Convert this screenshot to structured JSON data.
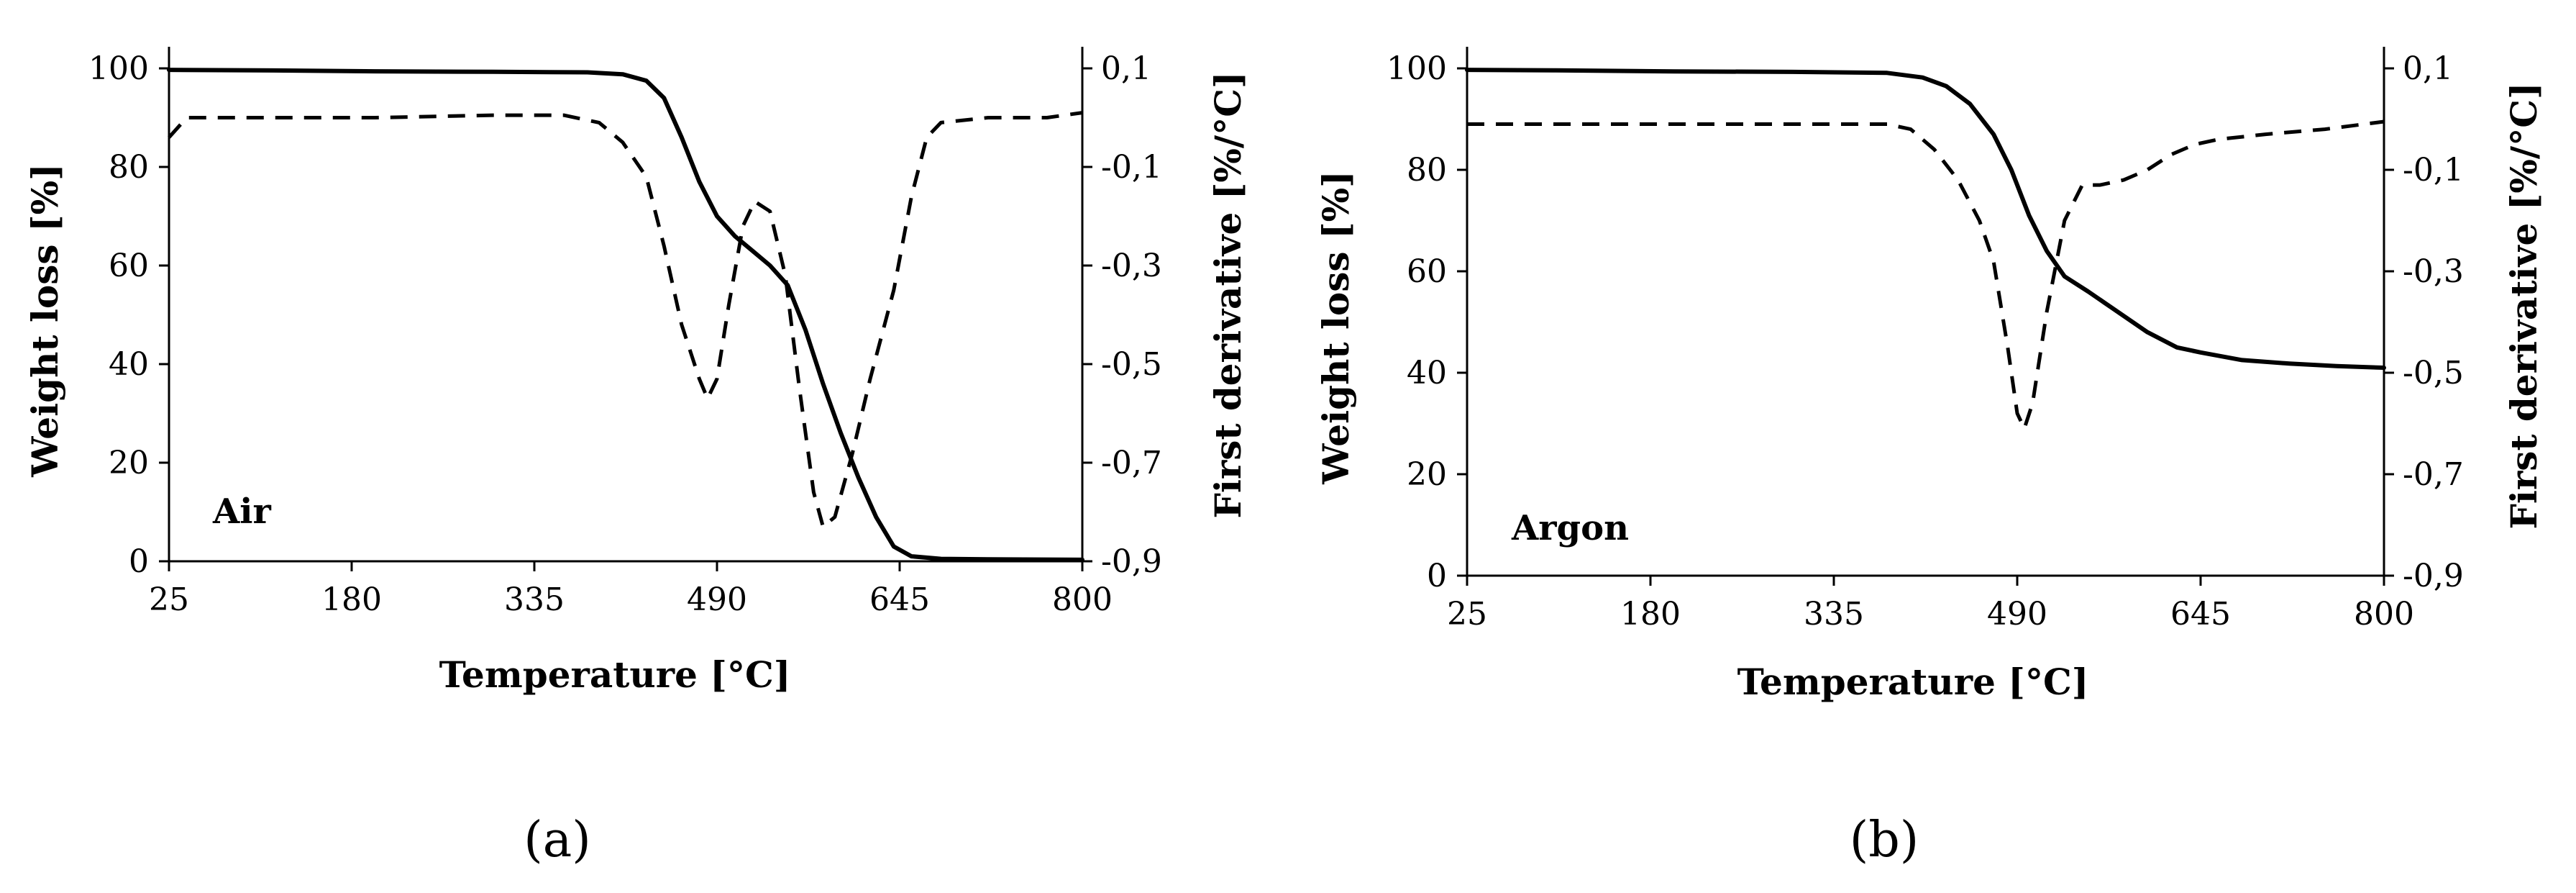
{
  "chart_data": [
    {
      "type": "line",
      "panel_label": "(a)",
      "annotation": "Air",
      "xlabel": "Temperature [°C]",
      "ylabel": "Weight loss [%]",
      "y2label": "First derivative  [%/°C]",
      "xlim": [
        25,
        800
      ],
      "ylim": [
        0,
        100
      ],
      "y2lim": [
        -0.9,
        0.1
      ],
      "x_ticks": [
        "25",
        "180",
        "335",
        "490",
        "645",
        "800"
      ],
      "y_ticks": [
        "0",
        "20",
        "40",
        "60",
        "80",
        "100"
      ],
      "y2_ticks": [
        "-0,9",
        "-0,7",
        "-0,5",
        "-0,3",
        "-0,1",
        "0,1"
      ],
      "grid": false,
      "series": [
        {
          "axis": "left",
          "style": "solid",
          "points": [
            [
              25,
              99.7
            ],
            [
              100,
              99.6
            ],
            [
              200,
              99.4
            ],
            [
              300,
              99.3
            ],
            [
              380,
              99.2
            ],
            [
              410,
              98.8
            ],
            [
              430,
              97.5
            ],
            [
              445,
              94
            ],
            [
              460,
              86
            ],
            [
              475,
              77
            ],
            [
              490,
              70
            ],
            [
              505,
              66
            ],
            [
              520,
              63
            ],
            [
              535,
              60
            ],
            [
              550,
              56
            ],
            [
              565,
              47
            ],
            [
              580,
              36
            ],
            [
              595,
              26
            ],
            [
              610,
              17
            ],
            [
              625,
              9
            ],
            [
              640,
              3
            ],
            [
              655,
              1
            ],
            [
              680,
              0.5
            ],
            [
              720,
              0.4
            ],
            [
              800,
              0.3
            ]
          ]
        },
        {
          "axis": "right",
          "style": "dashed",
          "points": [
            [
              25,
              -0.04
            ],
            [
              40,
              0.0
            ],
            [
              100,
              0.0
            ],
            [
              200,
              0.0
            ],
            [
              300,
              0.005
            ],
            [
              360,
              0.005
            ],
            [
              390,
              -0.01
            ],
            [
              410,
              -0.05
            ],
            [
              430,
              -0.12
            ],
            [
              445,
              -0.26
            ],
            [
              460,
              -0.42
            ],
            [
              475,
              -0.53
            ],
            [
              482,
              -0.57
            ],
            [
              490,
              -0.53
            ],
            [
              500,
              -0.38
            ],
            [
              512,
              -0.22
            ],
            [
              522,
              -0.17
            ],
            [
              535,
              -0.19
            ],
            [
              548,
              -0.32
            ],
            [
              560,
              -0.55
            ],
            [
              572,
              -0.76
            ],
            [
              580,
              -0.83
            ],
            [
              590,
              -0.81
            ],
            [
              605,
              -0.68
            ],
            [
              620,
              -0.53
            ],
            [
              640,
              -0.35
            ],
            [
              655,
              -0.16
            ],
            [
              668,
              -0.04
            ],
            [
              680,
              -0.01
            ],
            [
              720,
              0.0
            ],
            [
              770,
              0.0
            ],
            [
              800,
              0.01
            ]
          ]
        }
      ]
    },
    {
      "type": "line",
      "panel_label": "(b)",
      "annotation": "Argon",
      "xlabel": "Temperature [°C]",
      "ylabel": "Weight loss [%]",
      "y2label": "First derivative  [%/°C]",
      "xlim": [
        25,
        800
      ],
      "ylim": [
        0,
        100
      ],
      "y2lim": [
        -0.9,
        0.1
      ],
      "x_ticks": [
        "25",
        "180",
        "335",
        "490",
        "645",
        "800"
      ],
      "y_ticks": [
        "0",
        "20",
        "40",
        "60",
        "80",
        "100"
      ],
      "y2_ticks": [
        "-0,9",
        "-0,7",
        "-0,5",
        "-0,3",
        "-0,1",
        "0,1"
      ],
      "grid": false,
      "series": [
        {
          "axis": "left",
          "style": "solid",
          "points": [
            [
              25,
              99.7
            ],
            [
              100,
              99.6
            ],
            [
              200,
              99.4
            ],
            [
              300,
              99.3
            ],
            [
              380,
              99.1
            ],
            [
              410,
              98.2
            ],
            [
              430,
              96.5
            ],
            [
              450,
              93
            ],
            [
              470,
              87
            ],
            [
              485,
              80
            ],
            [
              500,
              71
            ],
            [
              515,
              64
            ],
            [
              530,
              59
            ],
            [
              550,
              56
            ],
            [
              575,
              52
            ],
            [
              600,
              48
            ],
            [
              625,
              45
            ],
            [
              645,
              44
            ],
            [
              680,
              42.5
            ],
            [
              720,
              41.8
            ],
            [
              760,
              41.3
            ],
            [
              800,
              41
            ]
          ]
        },
        {
          "axis": "right",
          "style": "dashed",
          "points": [
            [
              25,
              -0.01
            ],
            [
              100,
              -0.01
            ],
            [
              200,
              -0.01
            ],
            [
              300,
              -0.01
            ],
            [
              380,
              -0.01
            ],
            [
              400,
              -0.02
            ],
            [
              420,
              -0.06
            ],
            [
              440,
              -0.12
            ],
            [
              458,
              -0.2
            ],
            [
              470,
              -0.28
            ],
            [
              482,
              -0.45
            ],
            [
              490,
              -0.58
            ],
            [
              496,
              -0.61
            ],
            [
              503,
              -0.56
            ],
            [
              515,
              -0.38
            ],
            [
              530,
              -0.2
            ],
            [
              545,
              -0.13
            ],
            [
              560,
              -0.13
            ],
            [
              580,
              -0.12
            ],
            [
              600,
              -0.1
            ],
            [
              620,
              -0.07
            ],
            [
              640,
              -0.05
            ],
            [
              660,
              -0.04
            ],
            [
              700,
              -0.03
            ],
            [
              750,
              -0.02
            ],
            [
              800,
              -0.005
            ]
          ]
        }
      ]
    }
  ]
}
